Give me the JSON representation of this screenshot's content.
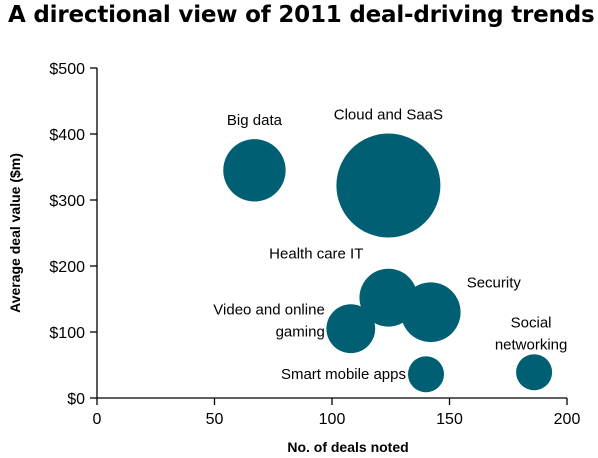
{
  "chart_data": {
    "type": "bubble",
    "title": "A directional view of 2011 deal-driving trends",
    "xlabel": "No. of deals noted",
    "ylabel": "Average deal value ($m)",
    "xlim": [
      0,
      200
    ],
    "ylim": [
      0,
      500
    ],
    "x_ticks": [
      "0",
      "50",
      "100",
      "150",
      "200"
    ],
    "y_ticks": [
      "$0",
      "$100",
      "$200",
      "$300",
      "$400",
      "$500"
    ],
    "grid": false,
    "bubble_color": "#005f73",
    "points": [
      {
        "label": "Big data",
        "x": 67,
        "y": 345,
        "size": 36
      },
      {
        "label": "Cloud and SaaS",
        "x": 124,
        "y": 322,
        "size": 100
      },
      {
        "label": "Health care IT",
        "x": 124,
        "y": 152,
        "size": 31
      },
      {
        "label": "Security",
        "x": 142,
        "y": 130,
        "size": 33
      },
      {
        "label": "Video and online gaming",
        "x": 108,
        "y": 105,
        "size": 22
      },
      {
        "label": "Smart mobile apps",
        "x": 140,
        "y": 36,
        "size": 12
      },
      {
        "label": "Social networking",
        "x": 186,
        "y": 39,
        "size": 12
      }
    ]
  }
}
